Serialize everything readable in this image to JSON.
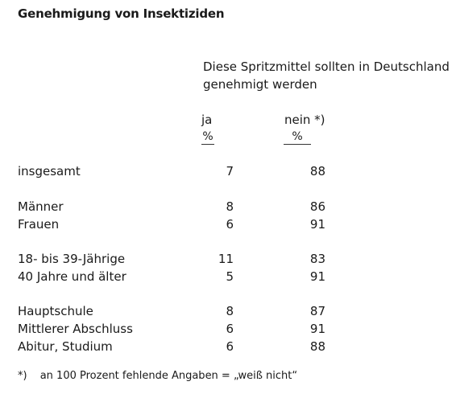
{
  "title": "Genehmigung von Insektiziden",
  "question_line1": "Diese Spritzmittel sollten in Deutschland",
  "question_line2": "genehmigt werden",
  "columns": {
    "ja": "ja",
    "nein": "nein *)",
    "unit_ja": "%",
    "unit_nein": "%"
  },
  "rows": [
    {
      "label": "insgesamt",
      "ja": "7",
      "nein": "88"
    },
    {
      "label": "Männer",
      "ja": "8",
      "nein": "86"
    },
    {
      "label": "Frauen",
      "ja": "6",
      "nein": "91"
    },
    {
      "label": "18- bis 39-Jährige",
      "ja": "11",
      "nein": "83"
    },
    {
      "label": "40 Jahre und älter",
      "ja": "5",
      "nein": "91"
    },
    {
      "label": "Hauptschule",
      "ja": "8",
      "nein": "87"
    },
    {
      "label": "Mittlerer Abschluss",
      "ja": "6",
      "nein": "91"
    },
    {
      "label": "Abitur, Studium",
      "ja": "6",
      "nein": "88"
    }
  ],
  "footnote": {
    "mark": "*)",
    "text": "an 100 Prozent fehlende Angaben = „weiß nicht“"
  }
}
